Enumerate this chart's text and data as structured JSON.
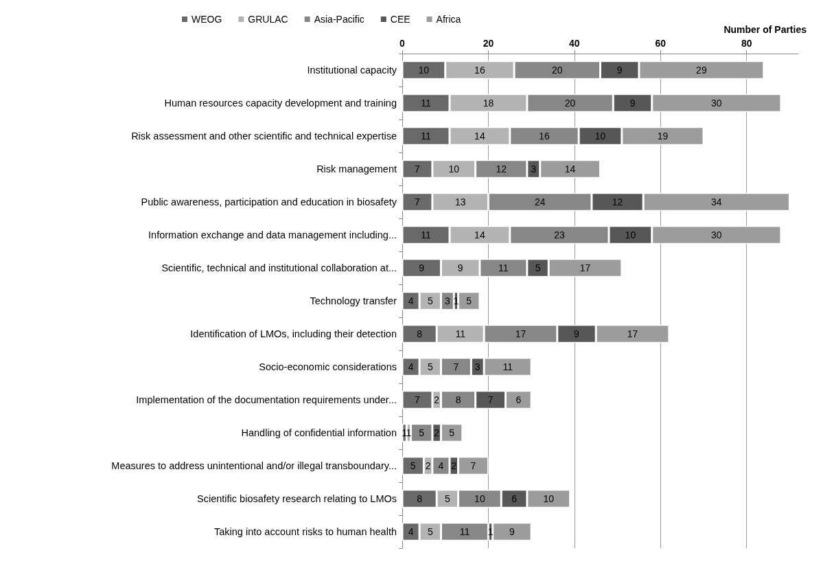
{
  "chart_data": {
    "type": "bar",
    "orientation": "horizontal",
    "stacked": true,
    "xlabel": "Number of Parties",
    "categories": [
      "Institutional capacity",
      "Human resources capacity development and training",
      "Risk assessment and other scientific and technical expertise",
      "Risk management",
      "Public awareness, participation and education in biosafety",
      "Information exchange and data management including...",
      "Scientific, technical and institutional collaboration at...",
      "Technology transfer",
      "Identification of LMOs, including their detection",
      "Socio-economic considerations",
      "Implementation of the documentation requirements under...",
      "Handling of confidential information",
      "Measures to address unintentional and/or illegal transboundary...",
      "Scientific biosafety research relating to LMOs",
      "Taking into account risks to human health"
    ],
    "series": [
      {
        "name": "WEOG",
        "color": "#696969",
        "values": [
          10,
          11,
          11,
          7,
          7,
          11,
          9,
          4,
          8,
          4,
          7,
          1,
          5,
          8,
          4
        ]
      },
      {
        "name": "GRULAC",
        "color": "#b3b3b3",
        "values": [
          16,
          18,
          14,
          10,
          13,
          14,
          9,
          5,
          11,
          5,
          2,
          1,
          2,
          5,
          5
        ]
      },
      {
        "name": "Asia-Pacific",
        "color": "#878787",
        "values": [
          20,
          20,
          16,
          12,
          24,
          23,
          11,
          3,
          17,
          7,
          8,
          5,
          4,
          10,
          11
        ]
      },
      {
        "name": "CEE",
        "color": "#575757",
        "values": [
          9,
          9,
          10,
          3,
          12,
          10,
          5,
          1,
          9,
          3,
          7,
          2,
          2,
          6,
          1
        ]
      },
      {
        "name": "Africa",
        "color": "#9c9c9c",
        "values": [
          29,
          30,
          19,
          14,
          34,
          30,
          17,
          5,
          17,
          11,
          6,
          5,
          7,
          10,
          9
        ]
      }
    ],
    "xlim": [
      0,
      92
    ],
    "xticks": [
      0,
      20,
      40,
      60,
      80
    ],
    "grid": "x",
    "legend": "top",
    "data_labels": true
  }
}
